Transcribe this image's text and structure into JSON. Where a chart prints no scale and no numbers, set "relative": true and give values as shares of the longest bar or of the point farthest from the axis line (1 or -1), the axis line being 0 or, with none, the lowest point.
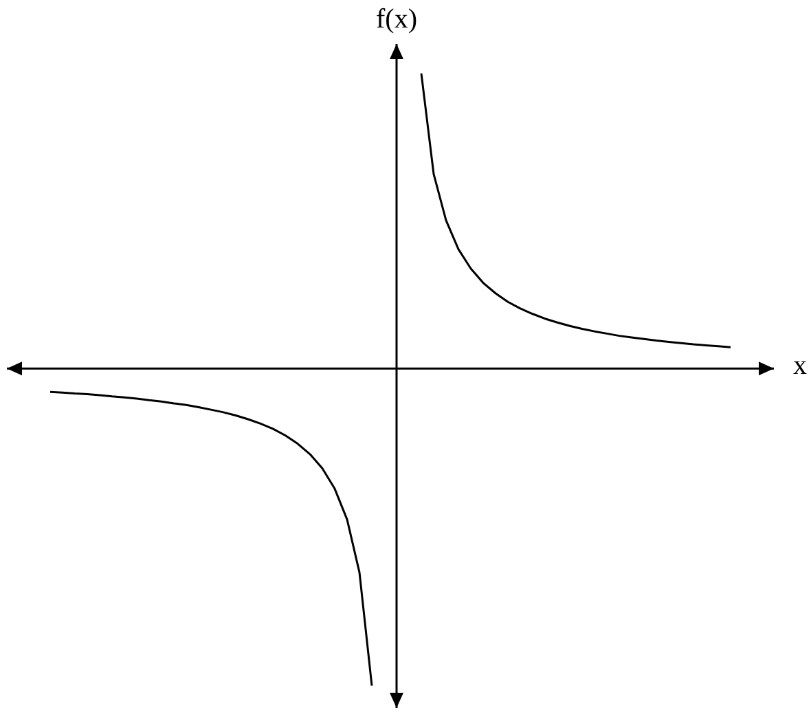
{
  "chart_data": {
    "type": "line",
    "xlabel": "x",
    "ylabel": "f(x)",
    "relative": true,
    "categories": [
      null,
      null,
      null,
      null,
      null,
      null,
      null,
      null,
      null,
      null,
      null,
      null,
      null,
      null,
      null,
      null,
      null,
      null,
      null,
      null,
      null,
      null,
      null,
      null,
      null,
      null,
      null,
      null,
      null,
      null,
      null,
      null,
      null,
      null,
      null,
      null,
      null,
      null,
      null,
      null,
      null,
      null,
      null,
      null,
      null,
      null,
      null,
      null,
      null,
      null,
      null,
      null,
      null,
      null,
      null,
      null
    ],
    "series": [
      {
        "color": "#000000",
        "values": [
          -0.074,
          -0.076,
          -0.079,
          -0.081,
          -0.084,
          -0.088,
          -0.091,
          -0.095,
          -0.1,
          -0.104,
          -0.11,
          -0.115,
          -0.122,
          -0.13,
          -0.138,
          -0.148,
          -0.16,
          -0.174,
          -0.19,
          -0.211,
          -0.237,
          -0.27,
          -0.315,
          -0.379,
          -0.476,
          -0.643,
          -1,
          null,
          null,
          null,
          null,
          null,
          null,
          null,
          null,
          null,
          null,
          null,
          null,
          null,
          null,
          null,
          null,
          null,
          null,
          null,
          null,
          null,
          null,
          null,
          null,
          null,
          null,
          null,
          null,
          null
        ]
      },
      {
        "color": "#000000",
        "values": [
          null,
          null,
          null,
          null,
          null,
          null,
          null,
          null,
          null,
          null,
          null,
          null,
          null,
          null,
          null,
          null,
          null,
          null,
          null,
          null,
          null,
          null,
          null,
          null,
          null,
          null,
          null,
          null,
          null,
          null,
          0.93,
          0.613,
          0.467,
          0.376,
          0.315,
          0.27,
          0.237,
          0.21,
          0.189,
          0.172,
          0.157,
          0.145,
          0.134,
          0.125,
          0.117,
          0.11,
          0.103,
          0.098,
          0.093,
          0.088,
          0.084,
          0.08,
          0.076,
          0.073,
          0.07,
          0.067
        ]
      }
    ]
  }
}
